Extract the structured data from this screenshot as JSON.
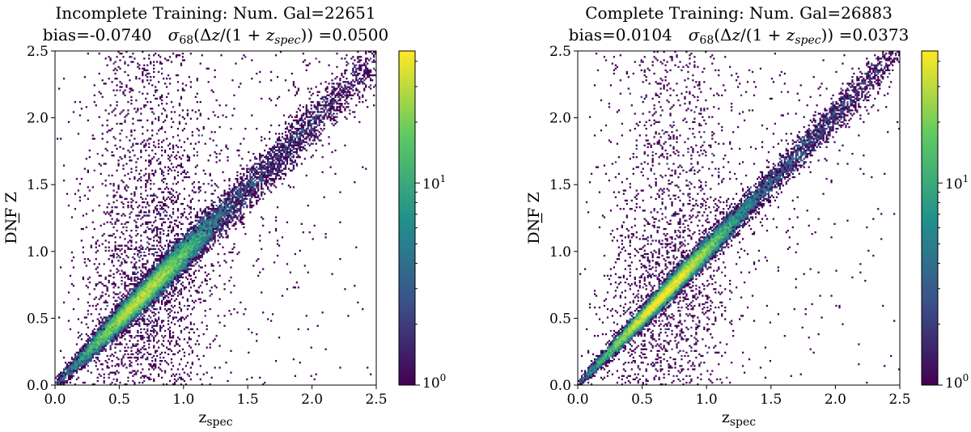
{
  "chart_data": [
    {
      "type": "heatmap",
      "title_line1": "Incomplete Training: Num. Gal=22651",
      "title_line2_bias": "bias=-0.0740",
      "title_line2_sigma_value": "=0.0500",
      "xlabel": "zspec",
      "ylabel": "DNF Z",
      "xlim": [
        0,
        2.5
      ],
      "ylim": [
        0,
        2.5
      ],
      "xticks": [
        "0.0",
        "0.5",
        "1.0",
        "1.5",
        "2.0",
        "2.5"
      ],
      "yticks": [
        "0.0",
        "0.5",
        "1.0",
        "1.5",
        "2.0",
        "2.5"
      ],
      "colorbar": {
        "scale": "log",
        "min": 1,
        "max": 45,
        "labels": [
          "10^0",
          "10^1"
        ],
        "colormap": "viridis"
      },
      "n_galaxies": 22651,
      "bias": -0.074,
      "sigma68": 0.05,
      "scatter_model": {
        "core_sigma": 0.03,
        "outlier_fraction": 0.14,
        "offset": -0.02
      }
    },
    {
      "type": "heatmap",
      "title_line1": "Complete Training: Num. Gal=26883",
      "title_line2_bias": "bias=0.0104",
      "title_line2_sigma_value": "=0.0373",
      "xlabel": "zspec",
      "ylabel": "DNF Z",
      "xlim": [
        0,
        2.5
      ],
      "ylim": [
        0,
        2.5
      ],
      "xticks": [
        "0.0",
        "0.5",
        "1.0",
        "1.5",
        "2.0",
        "2.5"
      ],
      "yticks": [
        "0.0",
        "0.5",
        "1.0",
        "1.5",
        "2.0",
        "2.5"
      ],
      "colorbar": {
        "scale": "log",
        "min": 1,
        "max": 45,
        "labels": [
          "10^0",
          "10^1"
        ],
        "colormap": "viridis"
      },
      "n_galaxies": 26883,
      "bias": 0.0104,
      "sigma68": 0.0373,
      "scatter_model": {
        "core_sigma": 0.022,
        "outlier_fraction": 0.1,
        "offset": 0.01
      }
    }
  ]
}
